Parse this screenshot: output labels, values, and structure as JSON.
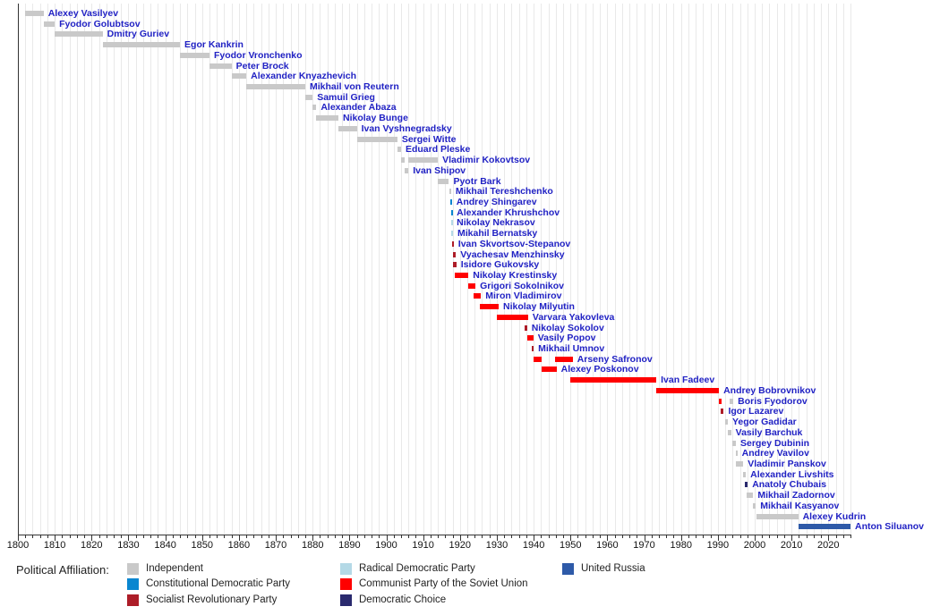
{
  "chart_data": {
    "type": "timeline",
    "description": "Gantt-style timeline of Russian ministers of finance with tenure bars colored by political affiliation",
    "x_axis": {
      "min": 1800,
      "max": 2026,
      "major_tick_step": 10,
      "minor_tick_step": 2,
      "tick_labels": [
        "1800",
        "1810",
        "1820",
        "1830",
        "1840",
        "1850",
        "1860",
        "1870",
        "1880",
        "1890",
        "1900",
        "1910",
        "1920",
        "1930",
        "1940",
        "1950",
        "1960",
        "1970",
        "1980",
        "1990",
        "2000",
        "2010",
        "2020"
      ],
      "grid": true
    },
    "palette": {
      "independent": "#c9c9c9",
      "constitutional_democratic": "#0a86d0",
      "socialist_revolutionary": "#ad1d28",
      "radical_democratic": "#b4d9e6",
      "communist": "#ff0000",
      "democratic_choice": "#2a2a6e",
      "united_russia": "#2e5aa8"
    },
    "ministers": [
      {
        "name": "Alexey Vasilyev",
        "party": "independent",
        "segments": [
          [
            1802,
            1807
          ]
        ]
      },
      {
        "name": "Fyodor Golubtsov",
        "party": "independent",
        "segments": [
          [
            1807,
            1810
          ]
        ]
      },
      {
        "name": "Dmitry Guriev",
        "party": "independent",
        "segments": [
          [
            1810,
            1823
          ]
        ]
      },
      {
        "name": "Egor Kankrin",
        "party": "independent",
        "segments": [
          [
            1823,
            1844
          ]
        ]
      },
      {
        "name": "Fyodor Vronchenko",
        "party": "independent",
        "segments": [
          [
            1844,
            1852
          ]
        ]
      },
      {
        "name": "Peter Brock",
        "party": "independent",
        "segments": [
          [
            1852,
            1858
          ]
        ]
      },
      {
        "name": "Alexander Knyazhevich",
        "party": "independent",
        "segments": [
          [
            1858,
            1862
          ]
        ]
      },
      {
        "name": "Mikhail von Reutern",
        "party": "independent",
        "segments": [
          [
            1862,
            1878
          ]
        ]
      },
      {
        "name": "Samuil Grieg",
        "party": "independent",
        "segments": [
          [
            1878,
            1880
          ]
        ]
      },
      {
        "name": "Alexander Abaza",
        "party": "independent",
        "segments": [
          [
            1880,
            1881
          ]
        ]
      },
      {
        "name": "Nikolay Bunge",
        "party": "independent",
        "segments": [
          [
            1881,
            1887
          ]
        ]
      },
      {
        "name": "Ivan Vyshnegradsky",
        "party": "independent",
        "segments": [
          [
            1887,
            1892
          ]
        ]
      },
      {
        "name": "Sergei Witte",
        "party": "independent",
        "segments": [
          [
            1892,
            1903
          ]
        ]
      },
      {
        "name": "Eduard Pleske",
        "party": "independent",
        "segments": [
          [
            1903,
            1904
          ]
        ]
      },
      {
        "name": "Vladimir Kokovtsov",
        "party": "independent",
        "segments": [
          [
            1904,
            1905
          ],
          [
            1906,
            1914
          ]
        ]
      },
      {
        "name": "Ivan Shipov",
        "party": "independent",
        "segments": [
          [
            1905,
            1906
          ]
        ]
      },
      {
        "name": "Pyotr Bark",
        "party": "independent",
        "segments": [
          [
            1914,
            1917
          ]
        ]
      },
      {
        "name": "Mikhail Tereshchenko",
        "party": "independent",
        "segments": [
          [
            1917.2,
            1917.6
          ]
        ]
      },
      {
        "name": "Andrey Shingarev",
        "party": "constitutional_democratic",
        "segments": [
          [
            1917.3,
            1917.8
          ]
        ]
      },
      {
        "name": "Alexander Khrushchov",
        "party": "constitutional_democratic",
        "segments": [
          [
            1917.5,
            1917.9
          ]
        ]
      },
      {
        "name": "Nikolay Nekrasov",
        "party": "radical_democratic",
        "segments": [
          [
            1917.5,
            1917.9
          ]
        ]
      },
      {
        "name": "Mikahil Bernatsky",
        "party": "radical_democratic",
        "segments": [
          [
            1917.7,
            1918.1
          ]
        ]
      },
      {
        "name": "Ivan Skvortsov-Stepanov",
        "party": "socialist_revolutionary",
        "segments": [
          [
            1917.9,
            1918.3
          ]
        ]
      },
      {
        "name": "Vyachesav Menzhinsky",
        "party": "socialist_revolutionary",
        "segments": [
          [
            1918,
            1918.9
          ]
        ]
      },
      {
        "name": "Isidore Gukovsky",
        "party": "socialist_revolutionary",
        "segments": [
          [
            1918.2,
            1919
          ]
        ]
      },
      {
        "name": "Nikolay Krestinsky",
        "party": "communist",
        "segments": [
          [
            1918.7,
            1922.3
          ]
        ]
      },
      {
        "name": "Grigori Sokolnikov",
        "party": "communist",
        "segments": [
          [
            1922.3,
            1924.2
          ]
        ]
      },
      {
        "name": "Miron Vladimirov",
        "party": "communist",
        "segments": [
          [
            1923.8,
            1925.7
          ]
        ]
      },
      {
        "name": "Nikolay Milyutin",
        "party": "communist",
        "segments": [
          [
            1925.3,
            1930.5
          ]
        ]
      },
      {
        "name": "Varvara Yakovleva",
        "party": "communist",
        "segments": [
          [
            1930,
            1938.5
          ]
        ]
      },
      {
        "name": "Nikolay Sokolov",
        "party": "socialist_revolutionary",
        "segments": [
          [
            1937.5,
            1938.2
          ]
        ]
      },
      {
        "name": "Vasily Popov",
        "party": "communist",
        "segments": [
          [
            1938.2,
            1939.9
          ]
        ]
      },
      {
        "name": "Mikhail Umnov",
        "party": "socialist_revolutionary",
        "segments": [
          [
            1939.5,
            1940
          ]
        ]
      },
      {
        "name": "Arseny Safronov",
        "party": "communist",
        "segments": [
          [
            1939.9,
            1942.2
          ],
          [
            1945.8,
            1950.6
          ]
        ]
      },
      {
        "name": "Alexey Poskonov",
        "party": "communist",
        "segments": [
          [
            1942.2,
            1946.2
          ]
        ]
      },
      {
        "name": "Ivan Fadeev",
        "party": "communist",
        "segments": [
          [
            1950,
            1973.3
          ]
        ]
      },
      {
        "name": "Andrey Bobrovnikov",
        "party": "communist",
        "segments": [
          [
            1973.3,
            1990.3
          ]
        ]
      },
      {
        "name": "Boris Fyodorov",
        "party": "communist",
        "segments": [
          [
            1990.3,
            1990.9
          ],
          [
            1993.3,
            1994.2
          ]
        ],
        "segment_parties": [
          "communist",
          "independent"
        ]
      },
      {
        "name": "Igor Lazarev",
        "party": "socialist_revolutionary",
        "segments": [
          [
            1990.8,
            1991.6
          ]
        ]
      },
      {
        "name": "Yegor Gadidar",
        "party": "independent",
        "segments": [
          [
            1991.9,
            1992.7
          ]
        ]
      },
      {
        "name": "Vasily Barchuk",
        "party": "independent",
        "segments": [
          [
            1992.7,
            1993.6
          ]
        ]
      },
      {
        "name": "Sergey Dubinin",
        "party": "independent",
        "segments": [
          [
            1993.9,
            1994.9
          ]
        ]
      },
      {
        "name": "Andrey Vavilov",
        "party": "independent",
        "segments": [
          [
            1994.9,
            1995.3
          ]
        ]
      },
      {
        "name": "Vladimir Panskov",
        "party": "independent",
        "segments": [
          [
            1995,
            1996.9
          ]
        ]
      },
      {
        "name": "Alexander Livshits",
        "party": "independent",
        "segments": [
          [
            1996.9,
            1997.6
          ]
        ]
      },
      {
        "name": "Anatoly Chubais",
        "party": "democratic_choice",
        "segments": [
          [
            1997.3,
            1998.1
          ]
        ]
      },
      {
        "name": "Mikhail Zadornov",
        "party": "independent",
        "segments": [
          [
            1997.8,
            1999.6
          ]
        ]
      },
      {
        "name": "Mikhail Kasyanov",
        "party": "independent",
        "segments": [
          [
            1999.4,
            2000.3
          ]
        ]
      },
      {
        "name": "Alexey Kudrin",
        "party": "independent",
        "segments": [
          [
            2000.6,
            2011.8
          ]
        ]
      },
      {
        "name": "Anton Siluanov",
        "party": "united_russia",
        "segments": [
          [
            2011.8,
            2026
          ]
        ]
      }
    ],
    "legend": {
      "title": "Political Affiliation:",
      "position": "bottom",
      "items": [
        {
          "label": "Independent",
          "color_key": "independent"
        },
        {
          "label": "Constitutional Democratic Party",
          "color_key": "constitutional_democratic"
        },
        {
          "label": "Socialist Revolutionary Party",
          "color_key": "socialist_revolutionary"
        },
        {
          "label": "Radical Democratic Party",
          "color_key": "radical_democratic"
        },
        {
          "label": "Communist Party of the Soviet Union",
          "color_key": "communist"
        },
        {
          "label": "Democratic Choice",
          "color_key": "democratic_choice"
        },
        {
          "label": "United Russia",
          "color_key": "united_russia"
        }
      ]
    }
  }
}
